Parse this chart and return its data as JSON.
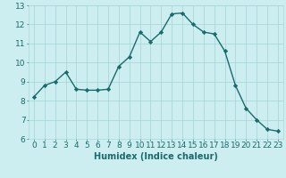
{
  "x": [
    0,
    1,
    2,
    3,
    4,
    5,
    6,
    7,
    8,
    9,
    10,
    11,
    12,
    13,
    14,
    15,
    16,
    17,
    18,
    19,
    20,
    21,
    22,
    23
  ],
  "y": [
    8.2,
    8.8,
    9.0,
    9.5,
    8.6,
    8.55,
    8.55,
    8.6,
    9.8,
    10.3,
    11.6,
    11.1,
    11.6,
    12.55,
    12.6,
    12.0,
    11.6,
    11.5,
    10.6,
    8.8,
    7.6,
    7.0,
    6.5,
    6.4
  ],
  "line_color": "#1a6b6b",
  "marker": "D",
  "marker_size": 2.2,
  "bg_color": "#cceef0",
  "grid_color": "#aad8da",
  "xlabel": "Humidex (Indice chaleur)",
  "ylim": [
    6,
    13
  ],
  "xlim": [
    -0.5,
    23.5
  ],
  "yticks": [
    6,
    7,
    8,
    9,
    10,
    11,
    12,
    13
  ],
  "xticks": [
    0,
    1,
    2,
    3,
    4,
    5,
    6,
    7,
    8,
    9,
    10,
    11,
    12,
    13,
    14,
    15,
    16,
    17,
    18,
    19,
    20,
    21,
    22,
    23
  ],
  "xtick_labels": [
    "0",
    "1",
    "2",
    "3",
    "4",
    "5",
    "6",
    "7",
    "8",
    "9",
    "10",
    "11",
    "12",
    "13",
    "14",
    "15",
    "16",
    "17",
    "18",
    "19",
    "20",
    "21",
    "22",
    "23"
  ],
  "tick_color": "#1a6b6b",
  "xlabel_fontsize": 7,
  "tick_fontsize": 6.5,
  "linewidth": 1.0,
  "spine_color": "#aad8da"
}
